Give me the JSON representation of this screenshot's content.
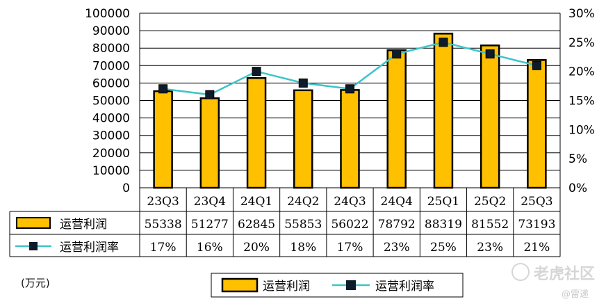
{
  "chart_data": {
    "type": "bar",
    "categories": [
      "23Q3",
      "23Q4",
      "24Q1",
      "24Q2",
      "24Q3",
      "24Q4",
      "25Q1",
      "25Q2",
      "25Q3"
    ],
    "series": [
      {
        "name": "运营利润",
        "type": "bar",
        "axis": "left",
        "values": [
          55338,
          51277,
          62845,
          55853,
          56022,
          78792,
          88319,
          81552,
          73193
        ],
        "color": "#FFC000"
      },
      {
        "name": "运营利润率",
        "type": "line",
        "axis": "right",
        "values": [
          17,
          16,
          20,
          18,
          17,
          23,
          25,
          23,
          21
        ],
        "labels": [
          "17%",
          "16%",
          "20%",
          "18%",
          "17%",
          "23%",
          "25%",
          "23%",
          "21%"
        ],
        "color": "#3DC4C8",
        "marker_color": "#0D1B2A"
      }
    ],
    "ylim": [
      0,
      100000
    ],
    "yticks": [
      "100000",
      "90000",
      "80000",
      "70000",
      "60000",
      "50000",
      "40000",
      "30000",
      "20000",
      "10000",
      "0"
    ],
    "y2lim": [
      0,
      30
    ],
    "y2ticks": [
      "30%",
      "25%",
      "20%",
      "15%",
      "10%",
      "5%",
      "0%"
    ],
    "grid": true,
    "legend": "bottom"
  },
  "unit_note": "(万元)",
  "watermark": {
    "text": "老虎社区",
    "sub": "@雷递"
  }
}
